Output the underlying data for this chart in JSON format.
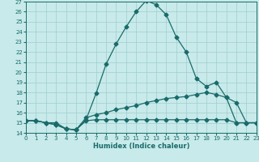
{
  "xlabel": "Humidex (Indice chaleur)",
  "bg_color": "#c8eaea",
  "grid_color": "#a0cdcd",
  "line_color": "#1a6b6b",
  "xlim": [
    0,
    23
  ],
  "ylim": [
    14,
    27
  ],
  "xticks": [
    0,
    1,
    2,
    3,
    4,
    5,
    6,
    7,
    8,
    9,
    10,
    11,
    12,
    13,
    14,
    15,
    16,
    17,
    18,
    19,
    20,
    21,
    22,
    23
  ],
  "yticks": [
    14,
    15,
    16,
    17,
    18,
    19,
    20,
    21,
    22,
    23,
    24,
    25,
    26,
    27
  ],
  "line1_x": [
    0,
    1,
    2,
    3,
    4,
    5,
    6,
    7,
    8,
    9,
    10,
    11,
    12,
    13,
    14,
    15,
    16,
    17,
    18,
    19,
    20,
    21,
    22,
    23
  ],
  "line1_y": [
    15.2,
    15.2,
    15.0,
    15.0,
    14.4,
    14.3,
    15.3,
    17.9,
    20.8,
    22.8,
    24.5,
    26.0,
    27.1,
    26.7,
    25.7,
    23.5,
    22.0,
    19.4,
    18.6,
    19.0,
    17.5,
    17.0,
    15.0,
    15.0
  ],
  "line2_x": [
    0,
    1,
    2,
    3,
    4,
    5,
    6,
    7,
    8,
    9,
    10,
    11,
    12,
    13,
    14,
    15,
    16,
    17,
    18,
    19,
    20,
    21,
    22,
    23
  ],
  "line2_y": [
    15.2,
    15.2,
    15.0,
    14.8,
    14.4,
    14.3,
    15.5,
    15.8,
    16.0,
    16.3,
    16.5,
    16.7,
    17.0,
    17.2,
    17.4,
    17.5,
    17.6,
    17.8,
    18.0,
    17.8,
    17.5,
    15.0,
    15.0,
    15.0
  ],
  "line3_x": [
    0,
    1,
    2,
    3,
    4,
    5,
    6,
    7,
    8,
    9,
    10,
    11,
    12,
    13,
    14,
    15,
    16,
    17,
    18,
    19,
    20,
    21,
    22,
    23
  ],
  "line3_y": [
    15.2,
    15.2,
    15.0,
    14.8,
    14.4,
    14.3,
    15.2,
    15.3,
    15.3,
    15.3,
    15.3,
    15.3,
    15.3,
    15.3,
    15.3,
    15.3,
    15.3,
    15.3,
    15.3,
    15.3,
    15.3,
    15.0,
    15.0,
    15.0
  ]
}
